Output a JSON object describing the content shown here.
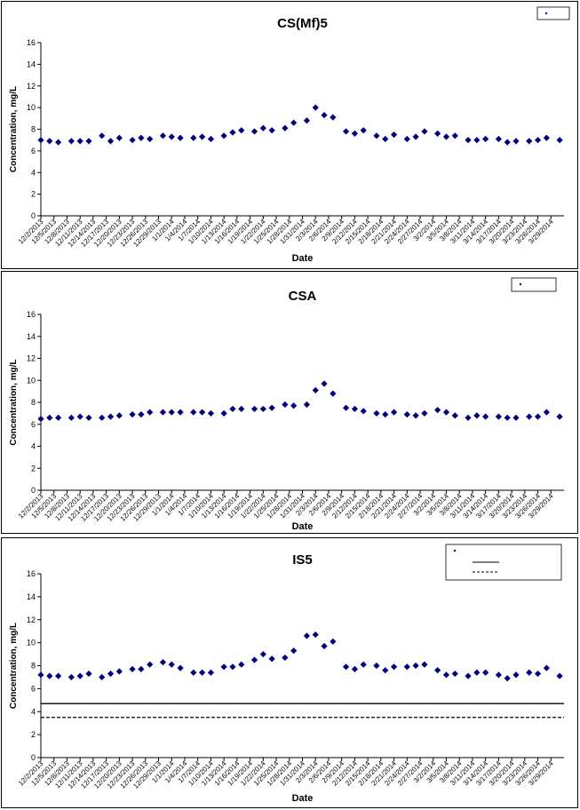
{
  "chart_data": [
    {
      "type": "scatter",
      "title": "CS(Mf)5",
      "xlabel": "Date",
      "ylabel": "Concentration, mg/L",
      "ylim": [
        0,
        16
      ],
      "yticks": [
        0,
        2,
        4,
        6,
        8,
        10,
        12,
        14,
        16
      ],
      "xticks": [
        "12/2/2013",
        "12/5/2013",
        "12/8/2013",
        "12/11/2013",
        "12/14/2013",
        "12/17/2013",
        "12/20/2013",
        "12/23/2013",
        "12/26/2013",
        "12/29/2013",
        "1/1/2014",
        "1/4/2014",
        "1/7/2014",
        "1/10/2014",
        "1/13/2014",
        "1/16/2014",
        "1/19/2014",
        "1/22/2014",
        "1/25/2014",
        "1/28/2014",
        "1/31/2014",
        "2/3/2014",
        "2/6/2014",
        "2/9/2014",
        "2/12/2014",
        "2/15/2014",
        "2/18/2014",
        "2/21/2014",
        "2/24/2014",
        "2/27/2014",
        "3/2/2014",
        "3/5/2014",
        "3/8/2014",
        "3/11/2014",
        "3/14/2014",
        "3/17/2014",
        "3/20/2014",
        "3/23/2014",
        "3/26/2014",
        "3/29/2014"
      ],
      "grid": false,
      "legend": "top-right",
      "series": [
        {
          "marker": "diamond",
          "color": "#00007f",
          "points": [
            [
              "12/2/2013",
              7.0
            ],
            [
              "12/4/2013",
              6.9
            ],
            [
              "12/6/2013",
              6.8
            ],
            [
              "12/9/2013",
              6.9
            ],
            [
              "12/11/2013",
              6.9
            ],
            [
              "12/13/2013",
              6.9
            ],
            [
              "12/16/2013",
              7.4
            ],
            [
              "12/18/2013",
              6.9
            ],
            [
              "12/20/2013",
              7.2
            ],
            [
              "12/23/2013",
              7.0
            ],
            [
              "12/25/2013",
              7.2
            ],
            [
              "12/27/2013",
              7.1
            ],
            [
              "12/30/2013",
              7.4
            ],
            [
              "1/1/2014",
              7.3
            ],
            [
              "1/3/2014",
              7.2
            ],
            [
              "1/6/2014",
              7.2
            ],
            [
              "1/8/2014",
              7.3
            ],
            [
              "1/10/2014",
              7.1
            ],
            [
              "1/13/2014",
              7.4
            ],
            [
              "1/15/2014",
              7.7
            ],
            [
              "1/17/2014",
              7.9
            ],
            [
              "1/20/2014",
              7.8
            ],
            [
              "1/22/2014",
              8.1
            ],
            [
              "1/24/2014",
              7.9
            ],
            [
              "1/27/2014",
              8.1
            ],
            [
              "1/29/2014",
              8.6
            ],
            [
              "2/1/2014",
              8.8
            ],
            [
              "2/3/2014",
              10.0
            ],
            [
              "2/5/2014",
              9.3
            ],
            [
              "2/7/2014",
              9.1
            ],
            [
              "2/10/2014",
              7.8
            ],
            [
              "2/12/2014",
              7.6
            ],
            [
              "2/14/2014",
              7.9
            ],
            [
              "2/17/2014",
              7.4
            ],
            [
              "2/19/2014",
              7.1
            ],
            [
              "2/21/2014",
              7.5
            ],
            [
              "2/24/2014",
              7.1
            ],
            [
              "2/26/2014",
              7.3
            ],
            [
              "2/28/2014",
              7.8
            ],
            [
              "3/3/2014",
              7.6
            ],
            [
              "3/5/2014",
              7.3
            ],
            [
              "3/7/2014",
              7.4
            ],
            [
              "3/10/2014",
              7.0
            ],
            [
              "3/12/2014",
              7.0
            ],
            [
              "3/14/2014",
              7.1
            ],
            [
              "3/17/2014",
              7.1
            ],
            [
              "3/19/2014",
              6.8
            ],
            [
              "3/21/2014",
              6.9
            ],
            [
              "3/24/2014",
              6.9
            ],
            [
              "3/26/2014",
              7.0
            ],
            [
              "3/28/2014",
              7.2
            ],
            [
              "3/31/2014",
              7.0
            ]
          ]
        }
      ]
    },
    {
      "type": "scatter",
      "title": "CSA",
      "xlabel": "Date",
      "ylabel": "Concentration, mg/L",
      "ylim": [
        0,
        16
      ],
      "yticks": [
        0,
        2,
        4,
        6,
        8,
        10,
        12,
        14,
        16
      ],
      "xticks": [
        "12/2/2013",
        "12/5/2013",
        "12/8/2013",
        "12/11/2013",
        "12/14/2013",
        "12/17/2013",
        "12/20/2013",
        "12/23/2013",
        "12/26/2013",
        "12/29/2013",
        "1/1/2014",
        "1/4/2014",
        "1/7/2014",
        "1/10/2014",
        "1/13/2014",
        "1/16/2014",
        "1/19/2014",
        "1/22/2014",
        "1/25/2014",
        "1/28/2014",
        "1/31/2014",
        "2/3/2014",
        "2/6/2014",
        "2/9/2014",
        "2/12/2014",
        "2/15/2014",
        "2/18/2014",
        "2/21/2014",
        "2/24/2014",
        "2/27/2014",
        "3/2/2014",
        "3/5/2014",
        "3/8/2014",
        "3/11/2014",
        "3/14/2014",
        "3/17/2014",
        "3/20/2014",
        "3/23/2014",
        "3/26/2014",
        "3/29/2014"
      ],
      "grid": false,
      "legend": "top-right",
      "series": [
        {
          "marker": "diamond",
          "color": "#00007f",
          "points": [
            [
              "12/2/2013",
              6.5
            ],
            [
              "12/4/2013",
              6.6
            ],
            [
              "12/6/2013",
              6.6
            ],
            [
              "12/9/2013",
              6.6
            ],
            [
              "12/11/2013",
              6.7
            ],
            [
              "12/13/2013",
              6.6
            ],
            [
              "12/16/2013",
              6.6
            ],
            [
              "12/18/2013",
              6.7
            ],
            [
              "12/20/2013",
              6.8
            ],
            [
              "12/23/2013",
              6.9
            ],
            [
              "12/25/2013",
              6.9
            ],
            [
              "12/27/2013",
              7.1
            ],
            [
              "12/30/2013",
              7.1
            ],
            [
              "1/1/2014",
              7.1
            ],
            [
              "1/3/2014",
              7.1
            ],
            [
              "1/6/2014",
              7.1
            ],
            [
              "1/8/2014",
              7.1
            ],
            [
              "1/10/2014",
              7.0
            ],
            [
              "1/13/2014",
              7.0
            ],
            [
              "1/15/2014",
              7.4
            ],
            [
              "1/17/2014",
              7.4
            ],
            [
              "1/20/2014",
              7.4
            ],
            [
              "1/22/2014",
              7.4
            ],
            [
              "1/24/2014",
              7.5
            ],
            [
              "1/27/2014",
              7.8
            ],
            [
              "1/29/2014",
              7.7
            ],
            [
              "2/1/2014",
              7.8
            ],
            [
              "2/3/2014",
              9.1
            ],
            [
              "2/5/2014",
              9.7
            ],
            [
              "2/7/2014",
              8.8
            ],
            [
              "2/10/2014",
              7.5
            ],
            [
              "2/12/2014",
              7.4
            ],
            [
              "2/14/2014",
              7.2
            ],
            [
              "2/17/2014",
              7.0
            ],
            [
              "2/19/2014",
              6.9
            ],
            [
              "2/21/2014",
              7.1
            ],
            [
              "2/24/2014",
              6.9
            ],
            [
              "2/26/2014",
              6.8
            ],
            [
              "2/28/2014",
              7.0
            ],
            [
              "3/3/2014",
              7.3
            ],
            [
              "3/5/2014",
              7.1
            ],
            [
              "3/7/2014",
              6.8
            ],
            [
              "3/10/2014",
              6.6
            ],
            [
              "3/12/2014",
              6.8
            ],
            [
              "3/14/2014",
              6.7
            ],
            [
              "3/17/2014",
              6.7
            ],
            [
              "3/19/2014",
              6.6
            ],
            [
              "3/21/2014",
              6.6
            ],
            [
              "3/24/2014",
              6.7
            ],
            [
              "3/26/2014",
              6.7
            ],
            [
              "3/28/2014",
              7.1
            ],
            [
              "3/31/2014",
              6.7
            ]
          ]
        }
      ]
    },
    {
      "type": "scatter",
      "title": "IS5",
      "xlabel": "Date",
      "ylabel": "Concentration, mg/L",
      "ylim": [
        0,
        16
      ],
      "yticks": [
        0,
        2,
        4,
        6,
        8,
        10,
        12,
        14,
        16
      ],
      "xticks": [
        "12/2/2013",
        "12/5/2013",
        "12/8/2013",
        "12/11/2013",
        "12/14/2013",
        "12/17/2013",
        "12/20/2013",
        "12/23/2013",
        "12/26/2013",
        "12/29/2013",
        "1/1/2014",
        "1/4/2014",
        "1/7/2014",
        "1/10/2014",
        "1/13/2014",
        "1/16/2014",
        "1/19/2014",
        "1/22/2014",
        "1/25/2014",
        "1/28/2014",
        "1/31/2014",
        "2/3/2014",
        "2/6/2014",
        "2/9/2014",
        "2/12/2014",
        "2/15/2014",
        "2/18/2014",
        "2/21/2014",
        "2/24/2014",
        "2/27/2014",
        "3/2/2014",
        "3/5/2014",
        "3/8/2014",
        "3/11/2014",
        "3/14/2014",
        "3/17/2014",
        "3/20/2014",
        "3/23/2014",
        "3/26/2014",
        "3/29/2014"
      ],
      "grid": false,
      "legend": "top-right",
      "reference_lines": [
        {
          "y": 4.7,
          "style": "solid",
          "color": "#000000"
        },
        {
          "y": 3.5,
          "style": "dashed",
          "color": "#000000"
        }
      ],
      "series": [
        {
          "marker": "diamond",
          "color": "#00007f",
          "points": [
            [
              "12/2/2013",
              7.2
            ],
            [
              "12/4/2013",
              7.1
            ],
            [
              "12/6/2013",
              7.1
            ],
            [
              "12/9/2013",
              7.0
            ],
            [
              "12/11/2013",
              7.1
            ],
            [
              "12/13/2013",
              7.3
            ],
            [
              "12/16/2013",
              7.0
            ],
            [
              "12/18/2013",
              7.3
            ],
            [
              "12/20/2013",
              7.5
            ],
            [
              "12/23/2013",
              7.7
            ],
            [
              "12/25/2013",
              7.7
            ],
            [
              "12/27/2013",
              8.1
            ],
            [
              "12/30/2013",
              8.3
            ],
            [
              "1/1/2014",
              8.1
            ],
            [
              "1/3/2014",
              7.8
            ],
            [
              "1/6/2014",
              7.4
            ],
            [
              "1/8/2014",
              7.4
            ],
            [
              "1/10/2014",
              7.4
            ],
            [
              "1/13/2014",
              7.9
            ],
            [
              "1/15/2014",
              7.9
            ],
            [
              "1/17/2014",
              8.1
            ],
            [
              "1/20/2014",
              8.5
            ],
            [
              "1/22/2014",
              9.0
            ],
            [
              "1/24/2014",
              8.6
            ],
            [
              "1/27/2014",
              8.7
            ],
            [
              "1/29/2014",
              9.3
            ],
            [
              "2/1/2014",
              10.6
            ],
            [
              "2/3/2014",
              10.7
            ],
            [
              "2/5/2014",
              9.7
            ],
            [
              "2/7/2014",
              10.1
            ],
            [
              "2/10/2014",
              7.9
            ],
            [
              "2/12/2014",
              7.7
            ],
            [
              "2/14/2014",
              8.1
            ],
            [
              "2/17/2014",
              8.0
            ],
            [
              "2/19/2014",
              7.6
            ],
            [
              "2/21/2014",
              7.9
            ],
            [
              "2/24/2014",
              7.9
            ],
            [
              "2/26/2014",
              8.0
            ],
            [
              "2/28/2014",
              8.1
            ],
            [
              "3/3/2014",
              7.6
            ],
            [
              "3/5/2014",
              7.2
            ],
            [
              "3/7/2014",
              7.3
            ],
            [
              "3/10/2014",
              7.1
            ],
            [
              "3/12/2014",
              7.4
            ],
            [
              "3/14/2014",
              7.4
            ],
            [
              "3/17/2014",
              7.2
            ],
            [
              "3/19/2014",
              6.9
            ],
            [
              "3/21/2014",
              7.2
            ],
            [
              "3/24/2014",
              7.4
            ],
            [
              "3/26/2014",
              7.3
            ],
            [
              "3/28/2014",
              7.8
            ],
            [
              "3/31/2014",
              7.1
            ]
          ]
        }
      ]
    }
  ]
}
